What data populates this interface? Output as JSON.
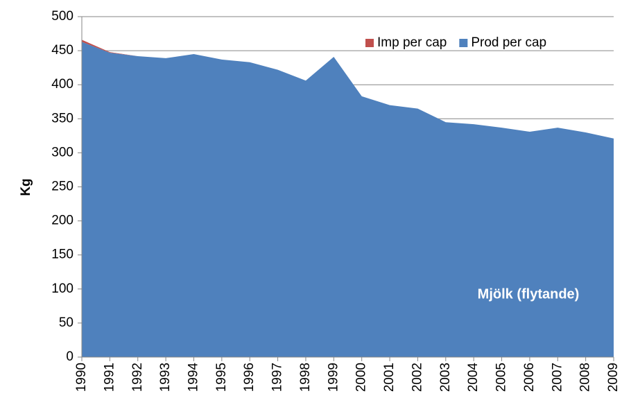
{
  "chart_data": {
    "type": "area",
    "stacked": true,
    "y_label": "Kg",
    "annotation": "Mjölk (flytande)",
    "categories": [
      "1990",
      "1991",
      "1992",
      "1993",
      "1994",
      "1995",
      "1996",
      "1997",
      "1998",
      "1999",
      "2000",
      "2001",
      "2002",
      "2003",
      "2004",
      "2005",
      "2006",
      "2007",
      "2008",
      "2009"
    ],
    "series": [
      {
        "name": "Imp per cap",
        "color": "#c0504d",
        "values": [
          3,
          1,
          0,
          0,
          0,
          0,
          0,
          0,
          0,
          0,
          0,
          0,
          0,
          0,
          0,
          0,
          0,
          0,
          0,
          0
        ]
      },
      {
        "name": "Prod per cap",
        "color": "#4f81bd",
        "values": [
          463,
          447,
          442,
          439,
          445,
          437,
          433,
          422,
          406,
          441,
          383,
          370,
          365,
          345,
          342,
          337,
          331,
          337,
          330,
          321
        ]
      }
    ],
    "ylim": [
      0,
      500
    ],
    "yticks": [
      0,
      50,
      100,
      150,
      200,
      250,
      300,
      350,
      400,
      450,
      500
    ],
    "grid": true,
    "legend": "top-right"
  }
}
